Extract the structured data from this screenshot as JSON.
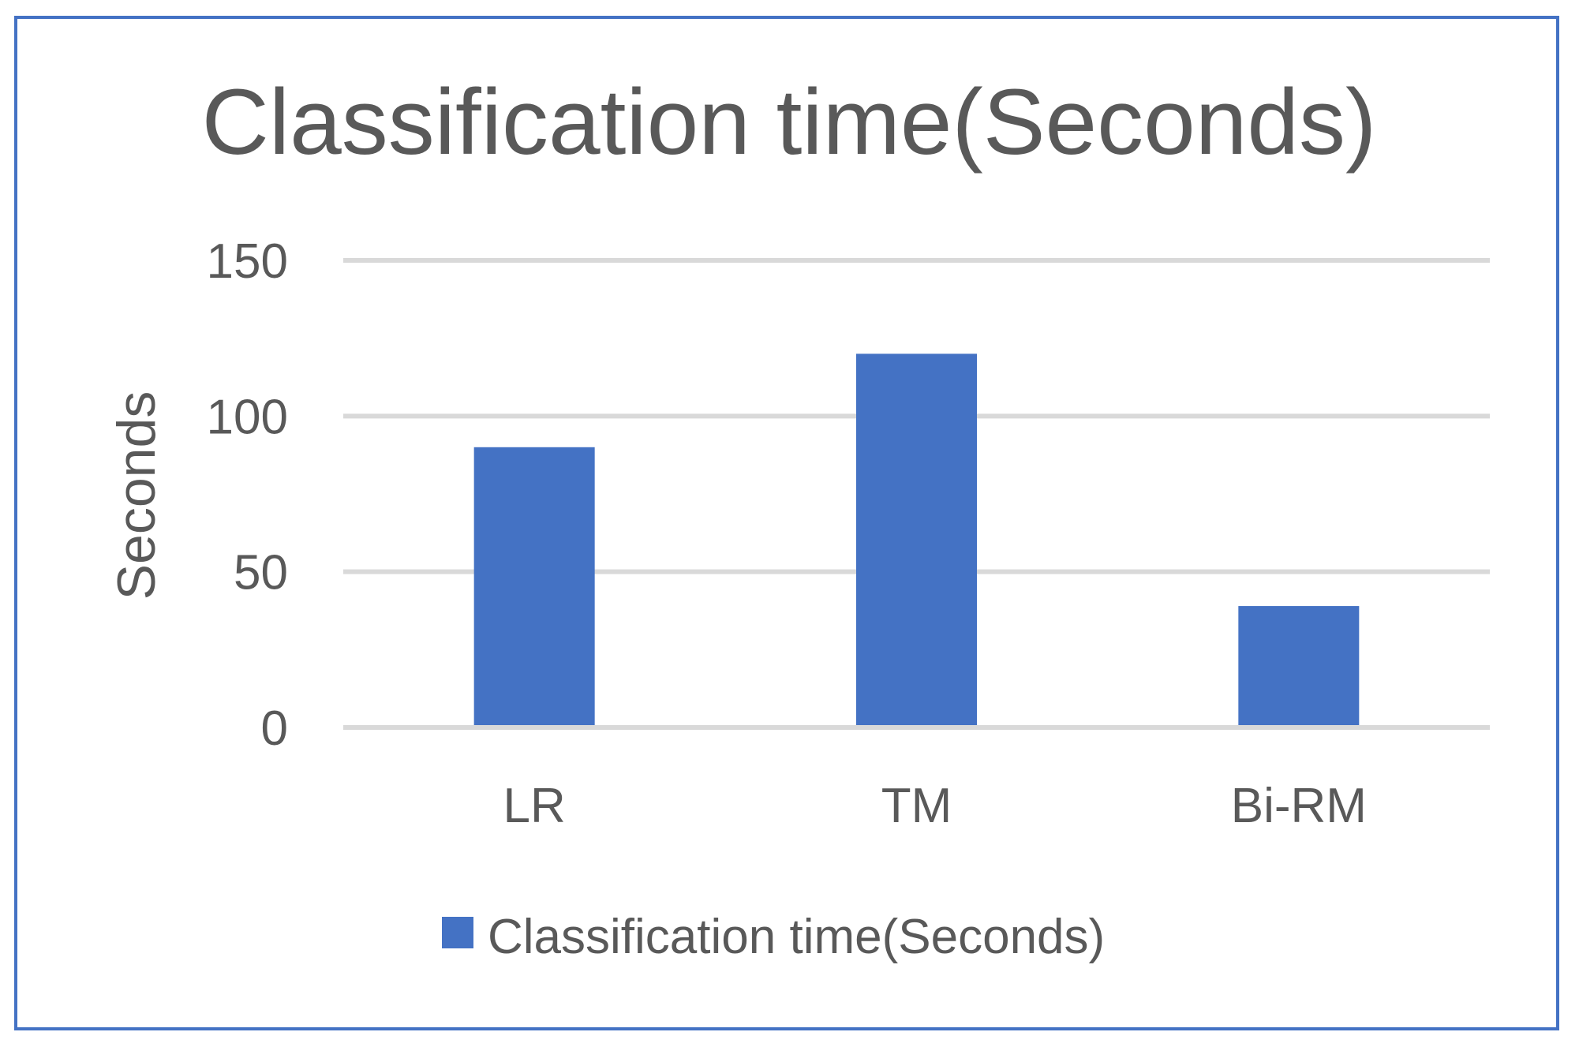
{
  "chart_data": {
    "type": "bar",
    "title": "Classification time(Seconds)",
    "ylabel": "Seconds",
    "xlabel": "",
    "categories": [
      "LR",
      "TM",
      "Bi-RM"
    ],
    "series": [
      {
        "name": "Classification time(Seconds)",
        "values": [
          90,
          120,
          39
        ],
        "color": "#4472c4"
      }
    ],
    "ylim": [
      0,
      150
    ],
    "yticks": [
      0,
      50,
      100,
      150
    ],
    "grid": true,
    "legend": "bottom"
  }
}
